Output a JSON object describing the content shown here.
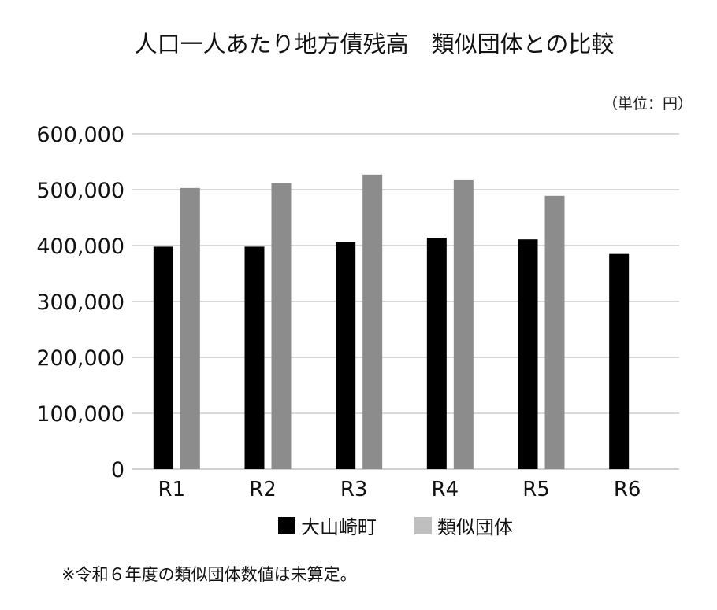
{
  "chart_data": {
    "type": "bar",
    "title": "人口一人あたり地方債残高　類似団体との比較",
    "unit_label": "（単位：円）",
    "categories": [
      "R1",
      "R2",
      "R3",
      "R4",
      "R5",
      "R6"
    ],
    "series": [
      {
        "name": "大山崎町",
        "color": "#000000",
        "values": [
          398000,
          398000,
          406000,
          414000,
          411000,
          385000
        ]
      },
      {
        "name": "類似団体",
        "color": "#8c8c8c",
        "values": [
          503000,
          512000,
          527000,
          517000,
          489000,
          null
        ]
      }
    ],
    "ylim": [
      0,
      600000
    ],
    "yticks": [
      0,
      100000,
      200000,
      300000,
      400000,
      500000,
      600000
    ],
    "ytick_labels": [
      "0",
      "100,000",
      "200,000",
      "300,000",
      "400,000",
      "500,000",
      "600,000"
    ],
    "grid": true,
    "legend_position": "bottom",
    "legend_swatch_colors": [
      "#000000",
      "#bfbfbf"
    ],
    "note": "※令和６年度の類似団体数値は未算定。"
  }
}
